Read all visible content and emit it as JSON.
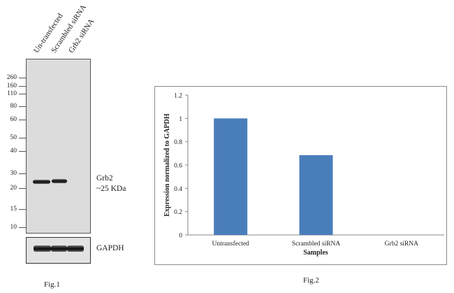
{
  "fig1": {
    "lanes": [
      "Un-transfected",
      "Scrambled siRNA",
      "Grb2 siRNA"
    ],
    "markers": [
      "260",
      "160",
      "110",
      "80",
      "60",
      "50",
      "40",
      "30",
      "20",
      "15",
      "10"
    ],
    "target_label": "Grb2",
    "target_size": "~25 KDa",
    "control_label": "GAPDH",
    "caption": "Fig.1"
  },
  "fig2": {
    "caption": "Fig.2"
  },
  "chart_data": {
    "type": "bar",
    "categories": [
      "Untransfected",
      "Scrambled siRNA",
      "Grb2 siRNA"
    ],
    "values": [
      1.0,
      0.685,
      0.0
    ],
    "xlabel": "Samples",
    "ylabel": "Expression normalized to GAPDH",
    "ylim": [
      0,
      1.2
    ],
    "yticks": [
      "0",
      "0.2",
      "0.4",
      "0.6",
      "0.8",
      "1",
      "1.2"
    ],
    "bar_color": "#4a7ebb",
    "grid": false,
    "legend": "none"
  }
}
